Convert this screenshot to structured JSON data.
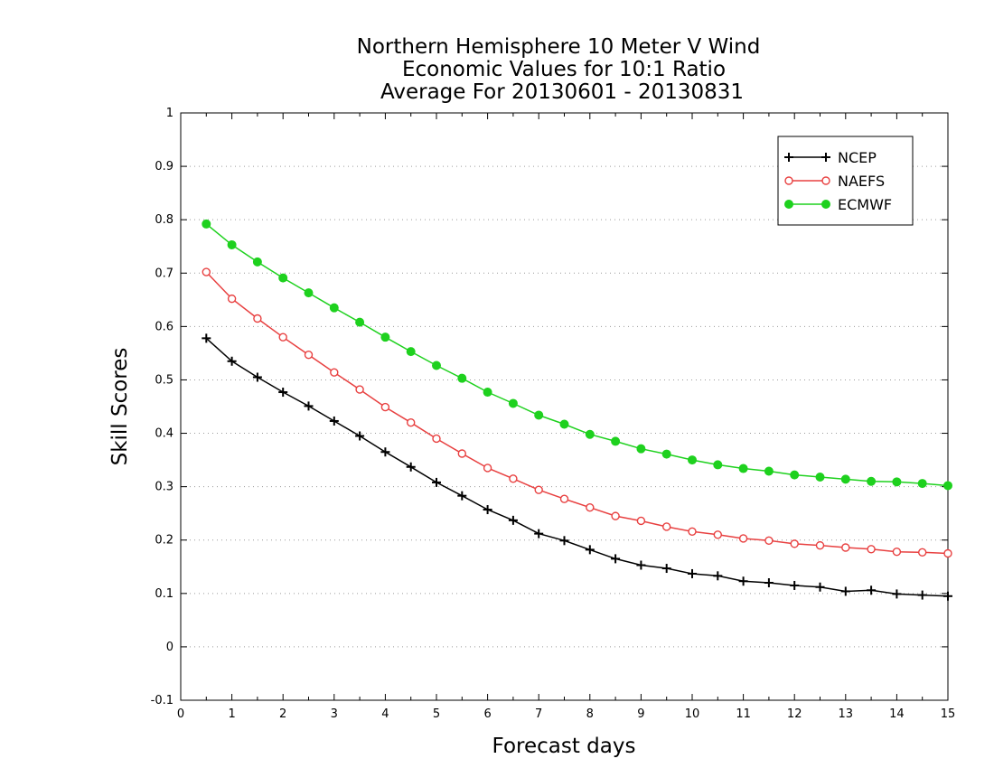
{
  "chart_data": {
    "type": "line",
    "title": [
      "Northern Hemisphere 10 Meter V Wind",
      "Economic Values for 10:1 Ratio",
      "Average For 20130601 - 20130831"
    ],
    "xlabel": "Forecast days",
    "ylabel": "Skill Scores",
    "xlim": [
      0,
      15
    ],
    "ylim": [
      -0.1,
      1
    ],
    "xticks": [
      "0",
      "1",
      "2",
      "3",
      "4",
      "5",
      "6",
      "7",
      "8",
      "9",
      "10",
      "11",
      "12",
      "13",
      "14",
      "15"
    ],
    "yticks": [
      "-0.1",
      "0",
      "0.1",
      "0.2",
      "0.3",
      "0.4",
      "0.5",
      "0.6",
      "0.7",
      "0.8",
      "0.9",
      "1"
    ],
    "grid": "horizontal-dotted",
    "legend_position": "top-right",
    "x": [
      0.5,
      1,
      1.5,
      2,
      2.5,
      3,
      3.5,
      4,
      4.5,
      5,
      5.5,
      6,
      6.5,
      7,
      7.5,
      8,
      8.5,
      9,
      9.5,
      10,
      10.5,
      11,
      11.5,
      12,
      12.5,
      13,
      13.5,
      14,
      14.5,
      15
    ],
    "series": [
      {
        "name": "NCEP",
        "color": "#000000",
        "marker": "plus",
        "values": [
          0.578,
          0.535,
          0.505,
          0.477,
          0.451,
          0.423,
          0.395,
          0.365,
          0.337,
          0.308,
          0.283,
          0.257,
          0.237,
          0.212,
          0.199,
          0.182,
          0.165,
          0.153,
          0.147,
          0.137,
          0.133,
          0.123,
          0.12,
          0.115,
          0.112,
          0.104,
          0.106,
          0.099,
          0.097,
          0.095
        ]
      },
      {
        "name": "NAEFS",
        "color": "#e84040",
        "marker": "open-circle",
        "values": [
          0.702,
          0.652,
          0.615,
          0.58,
          0.547,
          0.514,
          0.482,
          0.449,
          0.42,
          0.39,
          0.362,
          0.335,
          0.315,
          0.294,
          0.277,
          0.261,
          0.245,
          0.236,
          0.225,
          0.216,
          0.21,
          0.203,
          0.199,
          0.193,
          0.19,
          0.186,
          0.183,
          0.178,
          0.177,
          0.175
        ]
      },
      {
        "name": "ECMWF",
        "color": "#1ed11e",
        "marker": "filled-circle",
        "values": [
          0.792,
          0.753,
          0.721,
          0.691,
          0.663,
          0.635,
          0.608,
          0.58,
          0.553,
          0.527,
          0.503,
          0.477,
          0.456,
          0.434,
          0.417,
          0.398,
          0.385,
          0.371,
          0.361,
          0.35,
          0.341,
          0.334,
          0.329,
          0.322,
          0.318,
          0.314,
          0.31,
          0.309,
          0.306,
          0.302
        ]
      }
    ]
  }
}
